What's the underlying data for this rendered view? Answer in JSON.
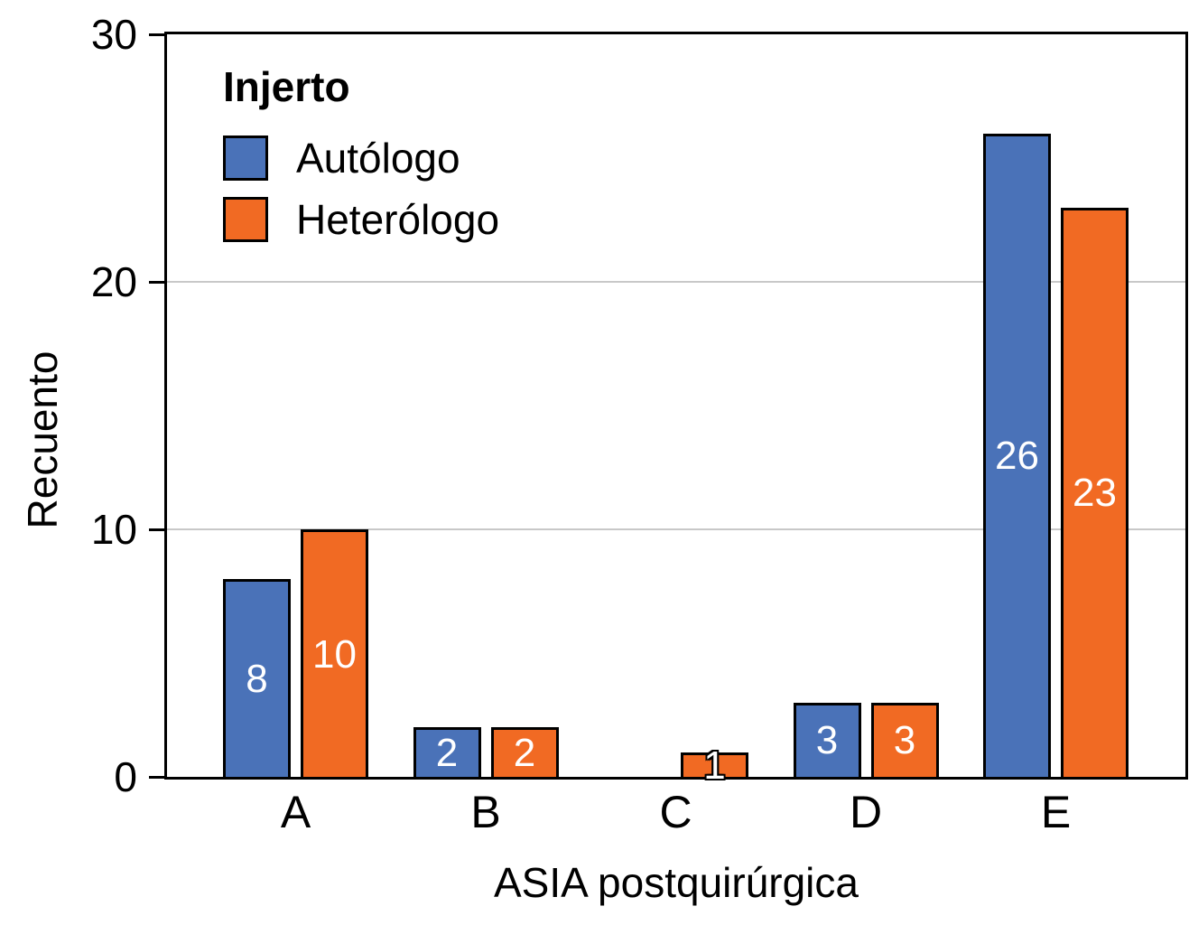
{
  "chart_data": {
    "type": "bar",
    "legend_title": "Injerto",
    "categories": [
      "A",
      "B",
      "C",
      "D",
      "E"
    ],
    "series": [
      {
        "name": "Autólogo",
        "color": "#4A72B8",
        "values": [
          8,
          2,
          0,
          3,
          26
        ]
      },
      {
        "name": "Heterólogo",
        "color": "#F16A23",
        "values": [
          10,
          2,
          1,
          3,
          23
        ]
      }
    ],
    "bar_value_labels": {
      "shown": true,
      "color": "#ffffff",
      "outlined_when_bar_too_small": true
    },
    "xlabel": "ASIA postquirúrgica",
    "ylabel": "Recuento",
    "ylim": [
      0,
      30
    ],
    "yticks": [
      "0",
      "10",
      "20",
      "30"
    ],
    "gridlines": {
      "values": [
        10,
        20
      ],
      "color": "#c8c8c8"
    },
    "axis_color": "#000000",
    "background_color": "#ffffff",
    "legend_position": "top-left-inside",
    "grid": "horizontal-only"
  }
}
